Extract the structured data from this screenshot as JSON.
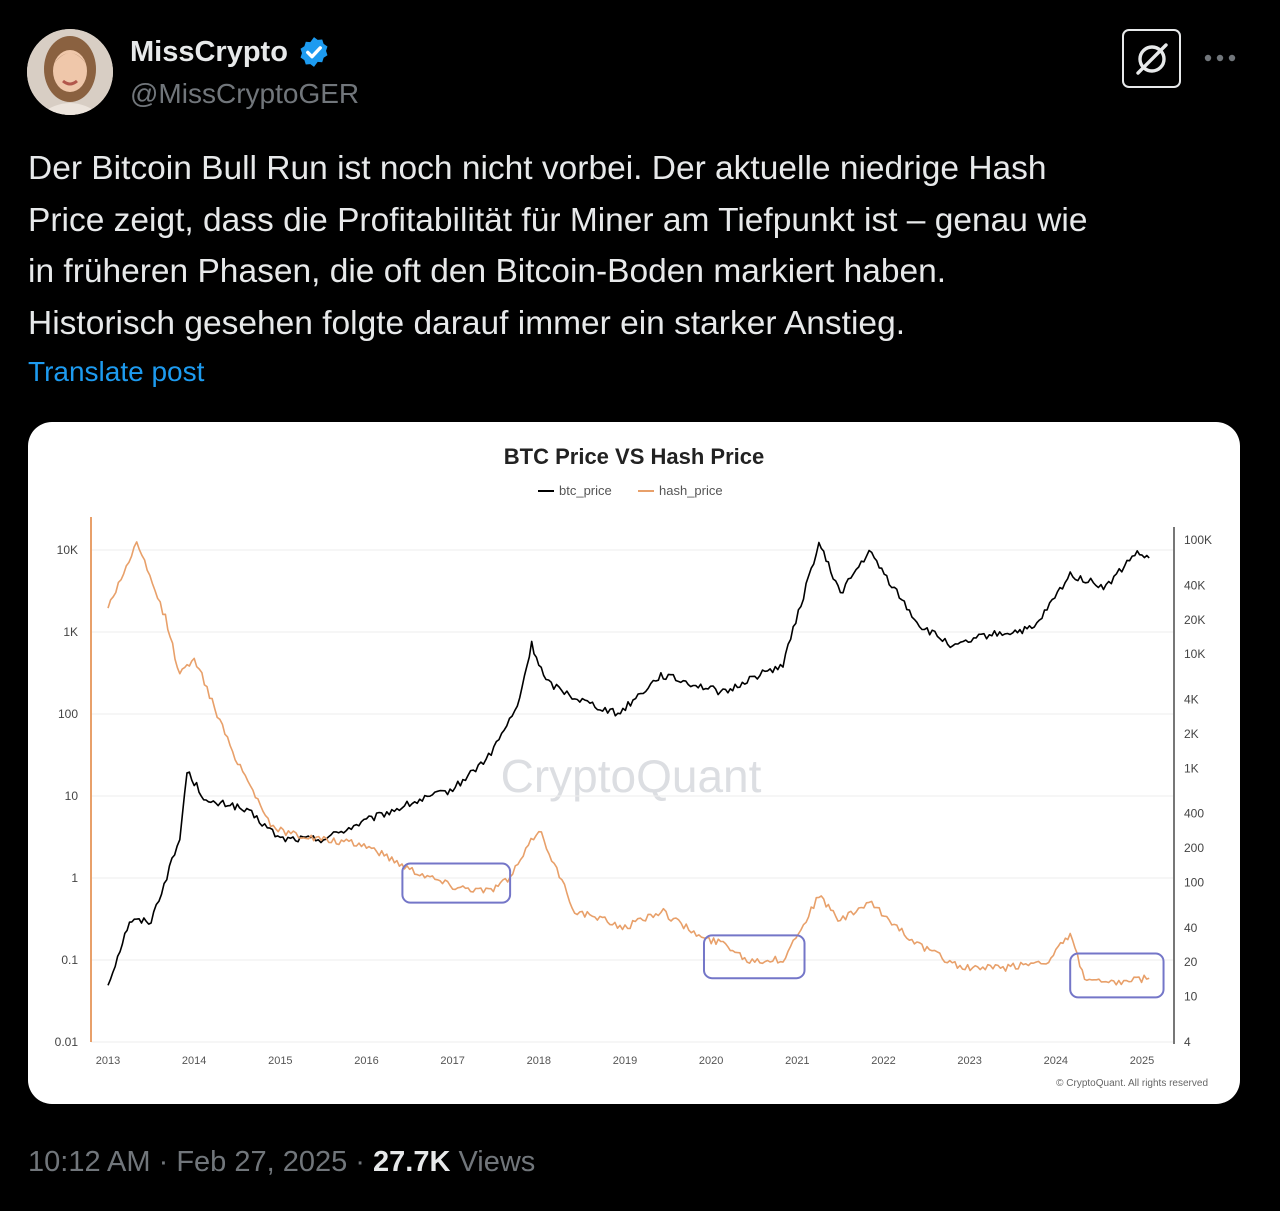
{
  "author": {
    "display_name": "MissCrypto",
    "handle": "@MissCryptoGER",
    "verified": true,
    "verified_color": "#1d9bf0"
  },
  "post": {
    "lines": [
      "Der Bitcoin Bull Run ist noch nicht vorbei. Der aktuelle niedrige Hash",
      "Price zeigt, dass die Profitabilität für Miner am Tiefpunkt ist – genau wie",
      "in früheren Phasen, die oft den Bitcoin-Boden markiert haben.",
      "Historisch gesehen folgte darauf immer ein starker Anstieg."
    ],
    "translate_label": "Translate post"
  },
  "icons": {
    "grok": "grok-icon",
    "more": "more-icon",
    "verified": "verified-badge-icon"
  },
  "meta": {
    "time": "10:12 AM",
    "separator": " · ",
    "date": "Feb 27, 2025",
    "views_count": "27.7K",
    "views_label": " Views"
  },
  "chart_data": {
    "type": "line",
    "title": "BTC Price VS Hash Price",
    "watermark": "CryptoQuant",
    "credit": "© CryptoQuant. All rights reserved",
    "legend_placement": "top-center",
    "grid": true,
    "x_ticks": [
      "2013",
      "2014",
      "2015",
      "2016",
      "2017",
      "2018",
      "2019",
      "2020",
      "2021",
      "2022",
      "2023",
      "2024",
      "2025"
    ],
    "left_axis": {
      "scale": "log",
      "ticks": [
        "10K",
        "1K",
        "100",
        "10",
        "1",
        "0.1",
        "0.01"
      ],
      "ylim": [
        0.01,
        10000
      ]
    },
    "right_axis": {
      "scale": "log",
      "ticks": [
        "100K",
        "40K",
        "20K",
        "10K",
        "4K",
        "2K",
        "1K",
        "400",
        "200",
        "100",
        "40",
        "20",
        "10",
        "4"
      ],
      "ylim": [
        4,
        100000
      ]
    },
    "series": [
      {
        "name": "btc_price",
        "color": "#000000",
        "axis": "left",
        "x": [
          "2013-01",
          "2013-04",
          "2013-07",
          "2013-11",
          "2013-12",
          "2014-03",
          "2014-06",
          "2014-09",
          "2015-01",
          "2015-07",
          "2016-01",
          "2016-07",
          "2017-01",
          "2017-06",
          "2017-10",
          "2017-12",
          "2018-02",
          "2018-06",
          "2018-12",
          "2019-06",
          "2020-03",
          "2020-06",
          "2020-11",
          "2021-04",
          "2021-07",
          "2021-11",
          "2022-06",
          "2022-11",
          "2023-03",
          "2023-07",
          "2023-10",
          "2024-03",
          "2024-08",
          "2024-12",
          "2025-02"
        ],
        "values": [
          0.05,
          0.3,
          0.3,
          3,
          20,
          8,
          8,
          6,
          3,
          3,
          5,
          8,
          12,
          30,
          120,
          700,
          250,
          160,
          100,
          300,
          180,
          260,
          400,
          12000,
          3000,
          9500,
          1200,
          650,
          900,
          1000,
          1100,
          5000,
          3500,
          9000,
          8000
        ]
      },
      {
        "name": "hash_price",
        "color": "#e8a06a",
        "axis": "left",
        "x": [
          "2013-01",
          "2013-05",
          "2013-09",
          "2013-11",
          "2014-01",
          "2014-06",
          "2014-12",
          "2015-06",
          "2016-01",
          "2016-07",
          "2017-01",
          "2017-06",
          "2017-09",
          "2018-01",
          "2018-06",
          "2019-01",
          "2019-06",
          "2019-12",
          "2020-03",
          "2020-06",
          "2020-11",
          "2021-04",
          "2021-07",
          "2021-11",
          "2022-06",
          "2022-12",
          "2023-06",
          "2023-12",
          "2024-03",
          "2024-05",
          "2024-08",
          "2025-02"
        ],
        "values": [
          2000,
          12000,
          1500,
          300,
          500,
          40,
          4,
          3,
          2.5,
          1.3,
          0.8,
          0.7,
          1,
          4,
          0.4,
          0.25,
          0.4,
          0.18,
          0.16,
          0.1,
          0.1,
          0.6,
          0.3,
          0.5,
          0.15,
          0.08,
          0.08,
          0.1,
          0.2,
          0.06,
          0.05,
          0.06
        ]
      }
    ],
    "highlight_boxes": [
      {
        "x_range": [
          "2016-06",
          "2017-09"
        ],
        "y_range": [
          0.5,
          1.5
        ]
      },
      {
        "x_range": [
          "2019-12",
          "2021-02"
        ],
        "y_range": [
          0.06,
          0.2
        ]
      },
      {
        "x_range": [
          "2024-03",
          "2025-04"
        ],
        "y_range": [
          0.035,
          0.12
        ]
      }
    ]
  }
}
